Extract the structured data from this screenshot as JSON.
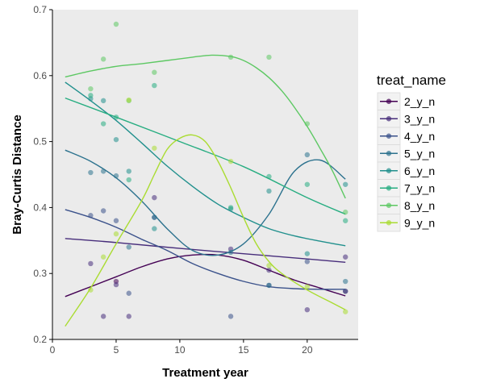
{
  "chart_data": {
    "type": "scatter",
    "xlabel": "Treatment year",
    "ylabel": "Bray-Curtis Distance",
    "xlim": [
      0,
      24
    ],
    "ylim": [
      0.2,
      0.7
    ],
    "xticks": [
      0,
      5,
      10,
      15,
      20
    ],
    "yticks": [
      0.2,
      0.3,
      0.4,
      0.5,
      0.6,
      0.7
    ],
    "grid": false,
    "legend_title": "treat_name",
    "legend_position": "right",
    "series": [
      {
        "name": "2_y_n",
        "color": "#440154",
        "points": [
          [
            5,
            0.288
          ],
          [
            23,
            0.273
          ]
        ],
        "curve": [
          [
            1,
            0.265
          ],
          [
            3,
            0.28
          ],
          [
            5,
            0.295
          ],
          [
            7,
            0.31
          ],
          [
            9,
            0.322
          ],
          [
            11,
            0.328
          ],
          [
            13,
            0.328
          ],
          [
            15,
            0.32
          ],
          [
            17,
            0.305
          ],
          [
            19,
            0.29
          ],
          [
            21,
            0.278
          ],
          [
            23,
            0.266
          ]
        ]
      },
      {
        "name": "3_y_n",
        "color": "#472d7b",
        "points": [
          [
            3,
            0.315
          ],
          [
            4,
            0.235
          ],
          [
            5,
            0.283
          ],
          [
            6,
            0.235
          ],
          [
            8,
            0.415
          ],
          [
            14,
            0.337
          ],
          [
            17,
            0.305
          ],
          [
            20,
            0.245
          ],
          [
            23,
            0.325
          ]
        ],
        "curve": [
          [
            1,
            0.353
          ],
          [
            5,
            0.347
          ],
          [
            10,
            0.338
          ],
          [
            15,
            0.33
          ],
          [
            20,
            0.322
          ],
          [
            23,
            0.317
          ]
        ]
      },
      {
        "name": "4_y_n",
        "color": "#3b528b",
        "points": [
          [
            3,
            0.388
          ],
          [
            4,
            0.395
          ],
          [
            5,
            0.38
          ],
          [
            6,
            0.27
          ],
          [
            8,
            0.385
          ],
          [
            14,
            0.235
          ],
          [
            17,
            0.282
          ],
          [
            20,
            0.318
          ],
          [
            23,
            0.273
          ]
        ],
        "curve": [
          [
            1,
            0.397
          ],
          [
            3,
            0.385
          ],
          [
            5,
            0.37
          ],
          [
            7,
            0.352
          ],
          [
            9,
            0.335
          ],
          [
            11,
            0.315
          ],
          [
            13,
            0.3
          ],
          [
            15,
            0.288
          ],
          [
            17,
            0.28
          ],
          [
            19,
            0.277
          ],
          [
            21,
            0.276
          ],
          [
            23,
            0.276
          ]
        ]
      },
      {
        "name": "5_y_n",
        "color": "#2c728e",
        "points": [
          [
            3,
            0.453
          ],
          [
            4,
            0.455
          ],
          [
            5,
            0.448
          ],
          [
            6,
            0.34
          ],
          [
            8,
            0.385
          ],
          [
            14,
            0.332
          ],
          [
            17,
            0.282
          ],
          [
            20,
            0.48
          ],
          [
            23,
            0.288
          ]
        ],
        "curve": [
          [
            1,
            0.487
          ],
          [
            3,
            0.47
          ],
          [
            5,
            0.445
          ],
          [
            7,
            0.41
          ],
          [
            9,
            0.368
          ],
          [
            11,
            0.335
          ],
          [
            13,
            0.328
          ],
          [
            15,
            0.345
          ],
          [
            17,
            0.39
          ],
          [
            19,
            0.455
          ],
          [
            21,
            0.472
          ],
          [
            23,
            0.443
          ]
        ]
      },
      {
        "name": "6_y_n",
        "color": "#21908d",
        "points": [
          [
            3,
            0.565
          ],
          [
            4,
            0.562
          ],
          [
            5,
            0.503
          ],
          [
            6,
            0.455
          ],
          [
            8,
            0.368
          ],
          [
            14,
            0.398
          ],
          [
            17,
            0.425
          ],
          [
            20,
            0.33
          ],
          [
            23,
            0.435
          ]
        ],
        "curve": [
          [
            1,
            0.59
          ],
          [
            3,
            0.562
          ],
          [
            5,
            0.532
          ],
          [
            7,
            0.498
          ],
          [
            9,
            0.463
          ],
          [
            11,
            0.432
          ],
          [
            13,
            0.405
          ],
          [
            15,
            0.385
          ],
          [
            17,
            0.368
          ],
          [
            19,
            0.357
          ],
          [
            21,
            0.349
          ],
          [
            23,
            0.342
          ]
        ]
      },
      {
        "name": "7_y_n",
        "color": "#27ad81",
        "points": [
          [
            3,
            0.57
          ],
          [
            4,
            0.527
          ],
          [
            5,
            0.537
          ],
          [
            6,
            0.442
          ],
          [
            8,
            0.585
          ],
          [
            14,
            0.4
          ],
          [
            17,
            0.447
          ],
          [
            20,
            0.435
          ],
          [
            23,
            0.38
          ]
        ],
        "curve": [
          [
            1,
            0.566
          ],
          [
            5,
            0.537
          ],
          [
            10,
            0.5
          ],
          [
            15,
            0.462
          ],
          [
            20,
            0.415
          ],
          [
            23,
            0.39
          ]
        ]
      },
      {
        "name": "8_y_n",
        "color": "#5dc863",
        "points": [
          [
            3,
            0.58
          ],
          [
            4,
            0.625
          ],
          [
            5,
            0.678
          ],
          [
            6,
            0.562
          ],
          [
            8,
            0.605
          ],
          [
            14,
            0.628
          ],
          [
            17,
            0.628
          ],
          [
            20,
            0.527
          ],
          [
            23,
            0.393
          ]
        ],
        "curve": [
          [
            1,
            0.598
          ],
          [
            3,
            0.607
          ],
          [
            5,
            0.614
          ],
          [
            7,
            0.618
          ],
          [
            9,
            0.623
          ],
          [
            11,
            0.628
          ],
          [
            12.5,
            0.631
          ],
          [
            14,
            0.629
          ],
          [
            15,
            0.623
          ],
          [
            16,
            0.612
          ],
          [
            17,
            0.597
          ],
          [
            18,
            0.577
          ],
          [
            19,
            0.552
          ],
          [
            20,
            0.523
          ],
          [
            21,
            0.49
          ],
          [
            22,
            0.455
          ],
          [
            23,
            0.414
          ]
        ]
      },
      {
        "name": "9_y_n",
        "color": "#aadc32",
        "points": [
          [
            3,
            0.275
          ],
          [
            4,
            0.325
          ],
          [
            5,
            0.36
          ],
          [
            6,
            0.563
          ],
          [
            8,
            0.49
          ],
          [
            14,
            0.47
          ],
          [
            17,
            0.312
          ],
          [
            20,
            0.28
          ],
          [
            23,
            0.242
          ]
        ],
        "curve": [
          [
            1,
            0.22
          ],
          [
            3,
            0.278
          ],
          [
            5,
            0.345
          ],
          [
            7,
            0.41
          ],
          [
            8,
            0.45
          ],
          [
            9,
            0.488
          ],
          [
            10,
            0.505
          ],
          [
            11,
            0.51
          ],
          [
            12,
            0.5
          ],
          [
            13,
            0.47
          ],
          [
            14,
            0.43
          ],
          [
            15,
            0.385
          ],
          [
            16,
            0.345
          ],
          [
            17,
            0.318
          ],
          [
            18,
            0.3
          ],
          [
            20,
            0.275
          ],
          [
            22,
            0.255
          ],
          [
            23,
            0.245
          ]
        ]
      }
    ]
  }
}
